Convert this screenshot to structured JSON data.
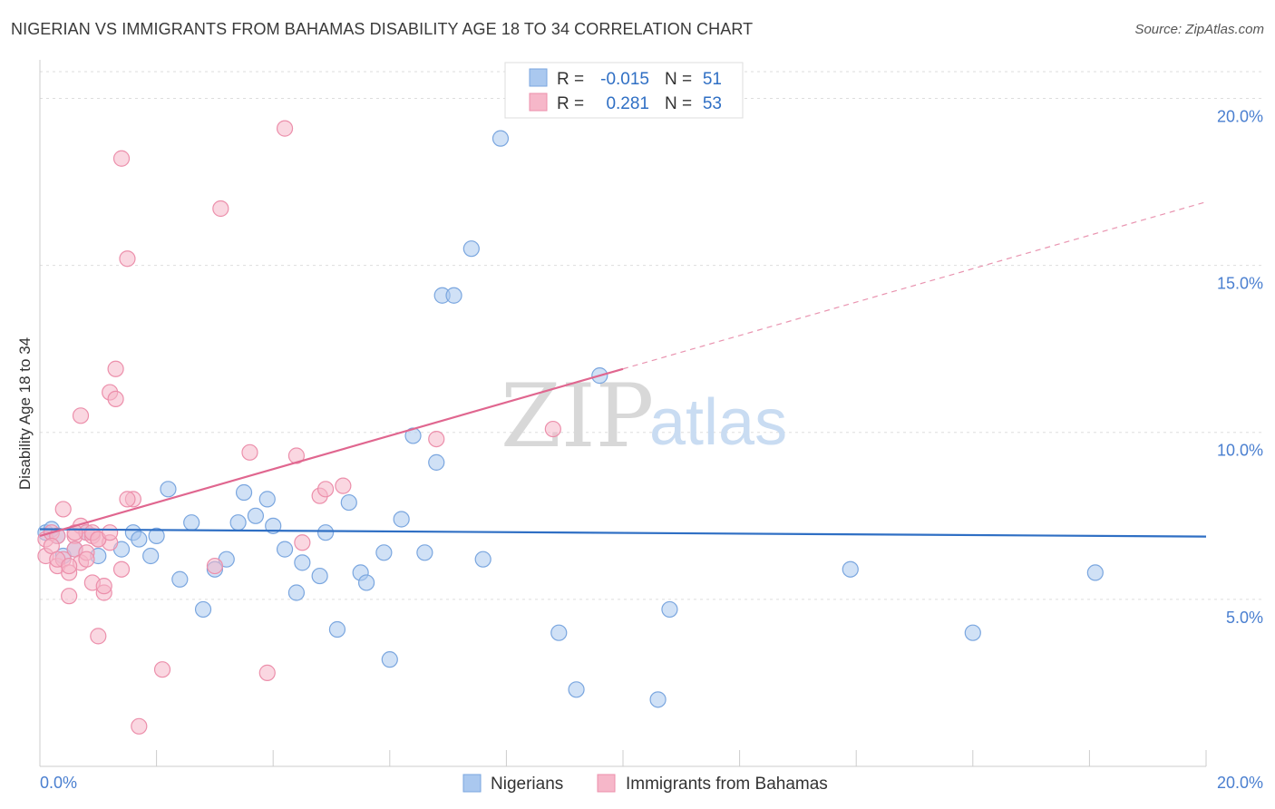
{
  "title": "NIGERIAN VS IMMIGRANTS FROM BAHAMAS DISABILITY AGE 18 TO 34 CORRELATION CHART",
  "source": "Source: ZipAtlas.com",
  "watermark": {
    "zip": "ZIP",
    "atlas": "atlas"
  },
  "colors": {
    "blue_fill": "#aac8ef",
    "blue_stroke": "#7aa6df",
    "blue_line": "#2f6fc4",
    "pink_fill": "#f6b7c9",
    "pink_stroke": "#ec8fab",
    "pink_line": "#e0668f",
    "grid": "#dddddd",
    "tick_label": "#4a7fd0"
  },
  "legend": {
    "r_label": "R =",
    "n_label": "N =",
    "rows": [
      {
        "r": "-0.015",
        "n": "51"
      },
      {
        "r": "0.281",
        "n": "53"
      }
    ]
  },
  "chart_data": {
    "type": "scatter",
    "title": "NIGERIAN VS IMMIGRANTS FROM BAHAMAS DISABILITY AGE 18 TO 34 CORRELATION CHART",
    "xlabel": "",
    "ylabel": "Disability Age 18 to 34",
    "xlim": [
      0,
      20
    ],
    "ylim": [
      0,
      20.8
    ],
    "x_tick_labels": [
      "0.0%",
      "20.0%"
    ],
    "y_ticks": [
      5,
      10,
      15,
      20
    ],
    "y_tick_labels": [
      "5.0%",
      "10.0%",
      "15.0%",
      "20.0%"
    ],
    "grid": true,
    "series": [
      {
        "name": "Nigerians",
        "color": "blue",
        "trend": {
          "x": [
            0,
            20
          ],
          "y": [
            7.1,
            6.88
          ],
          "dashed_from": null
        },
        "points": [
          [
            0.1,
            7.0
          ],
          [
            0.2,
            7.1
          ],
          [
            0.3,
            6.9
          ],
          [
            0.4,
            6.3
          ],
          [
            0.6,
            6.5
          ],
          [
            0.8,
            7.0
          ],
          [
            1.0,
            6.3
          ],
          [
            1.4,
            6.5
          ],
          [
            1.6,
            7.0
          ],
          [
            1.7,
            6.8
          ],
          [
            1.9,
            6.3
          ],
          [
            2.0,
            6.9
          ],
          [
            2.2,
            8.3
          ],
          [
            2.4,
            5.6
          ],
          [
            2.6,
            7.3
          ],
          [
            2.8,
            4.7
          ],
          [
            3.0,
            5.9
          ],
          [
            3.2,
            6.2
          ],
          [
            3.4,
            7.3
          ],
          [
            3.5,
            8.2
          ],
          [
            3.7,
            7.5
          ],
          [
            3.9,
            8.0
          ],
          [
            4.0,
            7.2
          ],
          [
            4.2,
            6.5
          ],
          [
            4.4,
            5.2
          ],
          [
            4.5,
            6.1
          ],
          [
            4.8,
            5.7
          ],
          [
            4.9,
            7.0
          ],
          [
            5.1,
            4.1
          ],
          [
            5.3,
            7.9
          ],
          [
            5.5,
            5.8
          ],
          [
            5.6,
            5.5
          ],
          [
            5.9,
            6.4
          ],
          [
            6.0,
            3.2
          ],
          [
            6.2,
            7.4
          ],
          [
            6.4,
            9.9
          ],
          [
            6.6,
            6.4
          ],
          [
            6.8,
            9.1
          ],
          [
            6.9,
            14.1
          ],
          [
            7.1,
            14.1
          ],
          [
            7.4,
            15.5
          ],
          [
            7.6,
            6.2
          ],
          [
            7.9,
            18.8
          ],
          [
            8.9,
            4.0
          ],
          [
            9.2,
            2.3
          ],
          [
            9.6,
            11.7
          ],
          [
            10.6,
            2.0
          ],
          [
            10.8,
            4.7
          ],
          [
            13.9,
            5.9
          ],
          [
            16.0,
            4.0
          ],
          [
            18.1,
            5.8
          ]
        ]
      },
      {
        "name": "Immigrants from Bahamas",
        "color": "pink",
        "trend": {
          "x": [
            0,
            10
          ],
          "y": [
            6.9,
            11.9
          ],
          "dashed_to": [
            20,
            16.9
          ]
        },
        "points": [
          [
            0.1,
            6.3
          ],
          [
            0.1,
            6.8
          ],
          [
            0.2,
            7.0
          ],
          [
            0.3,
            6.9
          ],
          [
            0.3,
            6.0
          ],
          [
            0.4,
            7.7
          ],
          [
            0.4,
            6.2
          ],
          [
            0.5,
            5.1
          ],
          [
            0.5,
            5.8
          ],
          [
            0.6,
            6.9
          ],
          [
            0.6,
            6.5
          ],
          [
            0.7,
            6.1
          ],
          [
            0.7,
            7.2
          ],
          [
            0.7,
            10.5
          ],
          [
            0.8,
            6.4
          ],
          [
            0.8,
            7.0
          ],
          [
            0.9,
            5.5
          ],
          [
            0.9,
            6.9
          ],
          [
            1.0,
            6.8
          ],
          [
            1.0,
            3.9
          ],
          [
            1.1,
            5.2
          ],
          [
            1.1,
            5.4
          ],
          [
            1.2,
            11.2
          ],
          [
            1.2,
            6.7
          ],
          [
            1.3,
            11.0
          ],
          [
            1.3,
            11.9
          ],
          [
            1.4,
            5.9
          ],
          [
            1.4,
            18.2
          ],
          [
            1.5,
            15.2
          ],
          [
            1.6,
            8.0
          ],
          [
            1.7,
            1.2
          ],
          [
            2.1,
            2.9
          ],
          [
            3.0,
            6.0
          ],
          [
            3.1,
            16.7
          ],
          [
            3.6,
            9.4
          ],
          [
            3.9,
            2.8
          ],
          [
            4.2,
            19.1
          ],
          [
            4.4,
            9.3
          ],
          [
            4.5,
            6.7
          ],
          [
            4.8,
            8.1
          ],
          [
            4.9,
            8.3
          ],
          [
            5.2,
            8.4
          ],
          [
            6.8,
            9.8
          ],
          [
            8.8,
            10.1
          ],
          [
            0.2,
            6.6
          ],
          [
            0.3,
            6.2
          ],
          [
            0.5,
            6.0
          ],
          [
            0.6,
            7.0
          ],
          [
            0.8,
            6.2
          ],
          [
            0.9,
            7.0
          ],
          [
            1.0,
            6.8
          ],
          [
            1.2,
            7.0
          ],
          [
            1.5,
            8.0
          ]
        ]
      }
    ]
  }
}
